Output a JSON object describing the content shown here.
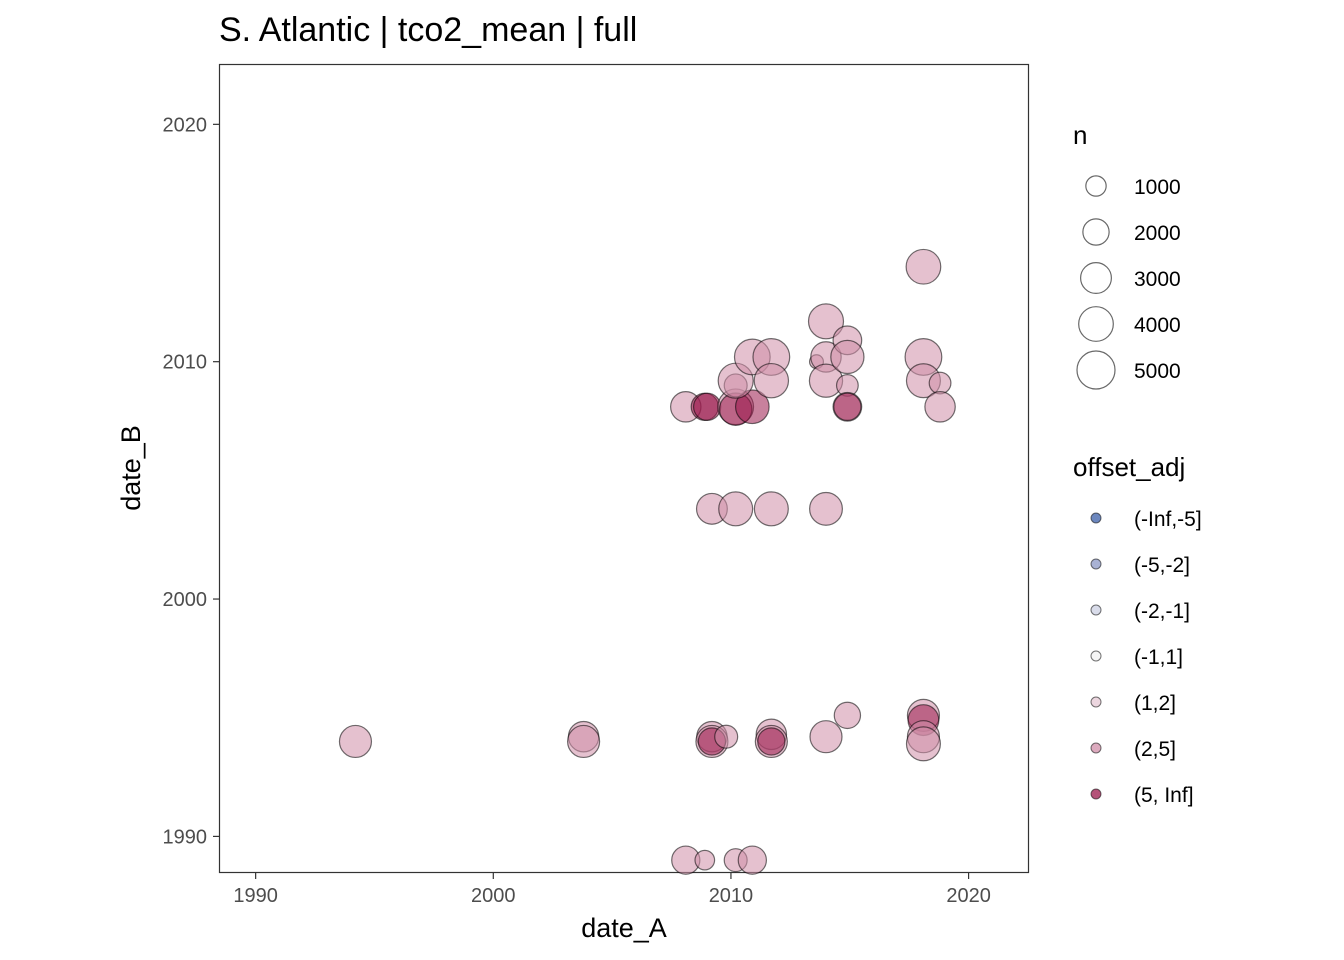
{
  "chart_data": {
    "type": "scatter",
    "title": "S. Atlantic | tco2_mean | full",
    "xlabel": "date_A",
    "ylabel": "date_B",
    "xlim": [
      1988.5,
      2022.5
    ],
    "ylim": [
      1988.5,
      2022.5
    ],
    "x_ticks": [
      1990,
      2000,
      2010,
      2020
    ],
    "y_ticks": [
      1990,
      2000,
      2010,
      2020
    ],
    "x_tick_labels": [
      "1990",
      "2000",
      "2010",
      "2020"
    ],
    "y_tick_labels": [
      "1990",
      "2000",
      "2010",
      "2020"
    ],
    "grid": false,
    "legend_position": "right",
    "size_legend": {
      "title": "n",
      "labels": [
        "1000",
        "2000",
        "3000",
        "4000",
        "5000"
      ],
      "values": [
        1000,
        2000,
        3000,
        4000,
        5000
      ]
    },
    "color_legend": {
      "title": "offset_adj",
      "labels": [
        "(-Inf,-5]",
        "(-5,-2]",
        "(-2,-1]",
        "(-1,1]",
        "(1,2]",
        "(2,5]",
        "(5, Inf]"
      ],
      "colors": [
        "#3b5fa8",
        "#8c98c6",
        "#ccd0e3",
        "#f2f2f2",
        "#e6c8d4",
        "#d08ea8",
        "#9b1a4c"
      ]
    },
    "points": [
      {
        "x": 1994.2,
        "y": 1994.0,
        "n": 3300,
        "offset": "(2,5]"
      },
      {
        "x": 2003.8,
        "y": 1994.2,
        "n": 2900,
        "offset": "(2,5]"
      },
      {
        "x": 2003.8,
        "y": 1994.0,
        "n": 3300,
        "offset": "(2,5]"
      },
      {
        "x": 2009.2,
        "y": 1994.2,
        "n": 2900,
        "offset": "(2,5]"
      },
      {
        "x": 2009.2,
        "y": 1994.0,
        "n": 3300,
        "offset": "(2,5]"
      },
      {
        "x": 2009.2,
        "y": 1994.0,
        "n": 2200,
        "offset": "(5, Inf]"
      },
      {
        "x": 2009.8,
        "y": 1994.2,
        "n": 1400,
        "offset": "(2,5]"
      },
      {
        "x": 2011.7,
        "y": 1994.3,
        "n": 2900,
        "offset": "(2,5]"
      },
      {
        "x": 2011.7,
        "y": 1994.0,
        "n": 3300,
        "offset": "(2,5]"
      },
      {
        "x": 2011.7,
        "y": 1994.0,
        "n": 2200,
        "offset": "(5, Inf]"
      },
      {
        "x": 2014.0,
        "y": 1994.2,
        "n": 3300,
        "offset": "(2,5]"
      },
      {
        "x": 2014.9,
        "y": 1995.1,
        "n": 2000,
        "offset": "(2,5]"
      },
      {
        "x": 2018.1,
        "y": 1995.1,
        "n": 3300,
        "offset": "(2,5]"
      },
      {
        "x": 2018.1,
        "y": 1994.9,
        "n": 3000,
        "offset": "(5, Inf]"
      },
      {
        "x": 2018.1,
        "y": 1994.2,
        "n": 3300,
        "offset": "(2,5]"
      },
      {
        "x": 2018.1,
        "y": 1993.9,
        "n": 3800,
        "offset": "(2,5]"
      },
      {
        "x": 2008.1,
        "y": 1989.0,
        "n": 2400,
        "offset": "(2,5]"
      },
      {
        "x": 2008.9,
        "y": 1989.0,
        "n": 900,
        "offset": "(2,5]"
      },
      {
        "x": 2010.2,
        "y": 1989.0,
        "n": 1400,
        "offset": "(2,5]"
      },
      {
        "x": 2010.9,
        "y": 1989.0,
        "n": 2400,
        "offset": "(2,5]"
      },
      {
        "x": 2009.2,
        "y": 2003.8,
        "n": 3000,
        "offset": "(2,5]"
      },
      {
        "x": 2010.2,
        "y": 2003.8,
        "n": 3800,
        "offset": "(2,5]"
      },
      {
        "x": 2011.7,
        "y": 2003.8,
        "n": 3800,
        "offset": "(2,5]"
      },
      {
        "x": 2014.0,
        "y": 2003.8,
        "n": 3500,
        "offset": "(2,5]"
      },
      {
        "x": 2008.1,
        "y": 2008.1,
        "n": 2900,
        "offset": "(2,5]"
      },
      {
        "x": 2008.9,
        "y": 2008.1,
        "n": 2200,
        "offset": "(5, Inf]"
      },
      {
        "x": 2009.0,
        "y": 2008.1,
        "n": 2200,
        "offset": "(5, Inf]"
      },
      {
        "x": 2010.2,
        "y": 2008.1,
        "n": 4300,
        "offset": "(2,5]"
      },
      {
        "x": 2010.2,
        "y": 2008.0,
        "n": 3400,
        "offset": "(5, Inf]"
      },
      {
        "x": 2010.9,
        "y": 2008.1,
        "n": 3700,
        "offset": "(5, Inf]"
      },
      {
        "x": 2010.2,
        "y": 2009.0,
        "n": 1400,
        "offset": "(2,5]"
      },
      {
        "x": 2010.2,
        "y": 2009.2,
        "n": 4100,
        "offset": "(2,5]"
      },
      {
        "x": 2010.9,
        "y": 2010.2,
        "n": 4300,
        "offset": "(2,5]"
      },
      {
        "x": 2011.7,
        "y": 2010.2,
        "n": 4600,
        "offset": "(2,5]"
      },
      {
        "x": 2011.7,
        "y": 2009.2,
        "n": 3900,
        "offset": "(2,5]"
      },
      {
        "x": 2013.6,
        "y": 2010.0,
        "n": 300,
        "offset": "(2,5]"
      },
      {
        "x": 2014.0,
        "y": 2011.7,
        "n": 4100,
        "offset": "(2,5]"
      },
      {
        "x": 2014.0,
        "y": 2010.2,
        "n": 2900,
        "offset": "(2,5]"
      },
      {
        "x": 2014.0,
        "y": 2009.2,
        "n": 3600,
        "offset": "(2,5]"
      },
      {
        "x": 2014.9,
        "y": 2010.9,
        "n": 2500,
        "offset": "(2,5]"
      },
      {
        "x": 2014.9,
        "y": 2010.2,
        "n": 3600,
        "offset": "(2,5]"
      },
      {
        "x": 2014.9,
        "y": 2009.0,
        "n": 1200,
        "offset": "(2,5]"
      },
      {
        "x": 2014.9,
        "y": 2008.1,
        "n": 2500,
        "offset": "(2,5]"
      },
      {
        "x": 2014.9,
        "y": 2008.1,
        "n": 2200,
        "offset": "(5, Inf]"
      },
      {
        "x": 2018.1,
        "y": 2014.0,
        "n": 4000,
        "offset": "(2,5]"
      },
      {
        "x": 2018.1,
        "y": 2010.2,
        "n": 4600,
        "offset": "(2,5]"
      },
      {
        "x": 2018.1,
        "y": 2009.2,
        "n": 3800,
        "offset": "(2,5]"
      },
      {
        "x": 2018.8,
        "y": 2009.1,
        "n": 1200,
        "offset": "(2,5]"
      },
      {
        "x": 2018.8,
        "y": 2008.1,
        "n": 2900,
        "offset": "(2,5]"
      }
    ]
  }
}
